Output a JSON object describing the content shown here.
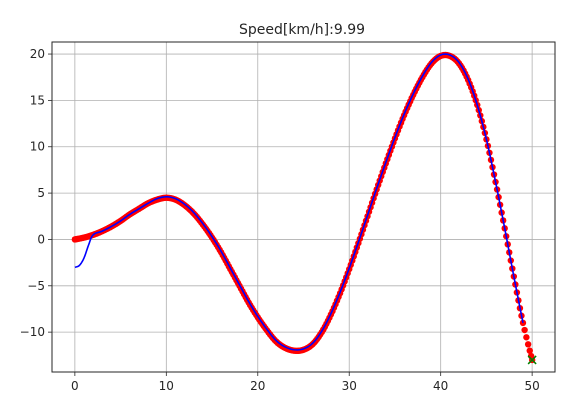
{
  "chart_data": {
    "type": "line",
    "title": "Speed[km/h]:9.99",
    "xlabel": "",
    "ylabel": "",
    "xlim": [
      -2.5,
      52.5
    ],
    "ylim": [
      -14.3,
      21.3
    ],
    "grid": true,
    "x_ticks": [
      0,
      10,
      20,
      30,
      40,
      50
    ],
    "y_ticks": [
      -10,
      -5,
      0,
      5,
      10,
      15,
      20
    ],
    "x_tick_labels": [
      "0",
      "10",
      "20",
      "30",
      "40",
      "50"
    ],
    "y_tick_labels": [
      "−10",
      "−5",
      "0",
      "5",
      "10",
      "15",
      "20"
    ],
    "series": [
      {
        "role": "course",
        "style": "points",
        "color": "#ff0000",
        "x": [
          0,
          1,
          2,
          3,
          4,
          5,
          6,
          7,
          8,
          9,
          10,
          11,
          12,
          13,
          14,
          15,
          16,
          17,
          18,
          19,
          20,
          21,
          22,
          23,
          24,
          25,
          26,
          27,
          28,
          29,
          30,
          31,
          32,
          33,
          34,
          35,
          36,
          37,
          38,
          39,
          40,
          41,
          42,
          43,
          44,
          45,
          46,
          47,
          48,
          49,
          50
        ],
        "y": [
          0,
          0.2,
          0.5,
          0.9,
          1.4,
          2.0,
          2.7,
          3.3,
          3.9,
          4.3,
          4.5,
          4.3,
          3.7,
          2.8,
          1.6,
          0.2,
          -1.4,
          -3.2,
          -5.0,
          -6.8,
          -8.4,
          -9.8,
          -11.0,
          -11.7,
          -12.0,
          -11.9,
          -11.3,
          -10.0,
          -8.1,
          -5.8,
          -3.2,
          -0.4,
          2.5,
          5.4,
          8.2,
          10.9,
          13.4,
          15.6,
          17.5,
          19.0,
          19.8,
          19.8,
          19.0,
          17.2,
          14.5,
          10.8,
          6.2,
          1.2,
          -4.0,
          -9.0,
          -13.0
        ]
      },
      {
        "role": "trajectory",
        "style": "line",
        "color": "#0000ff",
        "x": [
          0,
          0.5,
          1,
          1.5,
          2,
          3,
          4,
          5,
          6,
          7,
          8,
          9,
          10,
          11,
          12,
          13,
          14,
          15,
          16,
          17,
          18,
          19,
          20,
          21,
          22,
          23,
          24,
          25,
          26,
          27,
          28,
          29,
          30,
          31,
          32,
          33,
          34,
          35,
          36,
          37,
          38,
          39,
          40,
          41,
          42,
          43,
          44,
          45,
          46,
          47,
          48,
          49
        ],
        "y": [
          -3.0,
          -2.8,
          -2.0,
          -0.6,
          0.5,
          0.9,
          1.4,
          2.0,
          2.7,
          3.3,
          3.9,
          4.4,
          4.6,
          4.4,
          3.8,
          2.9,
          1.7,
          0.3,
          -1.3,
          -3.1,
          -4.9,
          -6.7,
          -8.3,
          -9.7,
          -10.9,
          -11.6,
          -11.9,
          -11.8,
          -11.2,
          -9.9,
          -8.0,
          -5.7,
          -3.1,
          -0.3,
          2.6,
          5.5,
          8.3,
          11.0,
          13.5,
          15.7,
          17.6,
          19.1,
          19.9,
          19.9,
          19.1,
          17.3,
          14.5,
          10.8,
          6.2,
          1.2,
          -4.0,
          -9.0
        ]
      },
      {
        "role": "goal",
        "style": "marker-x",
        "color": "#008000",
        "x": [
          50
        ],
        "y": [
          -13.0
        ]
      }
    ]
  }
}
